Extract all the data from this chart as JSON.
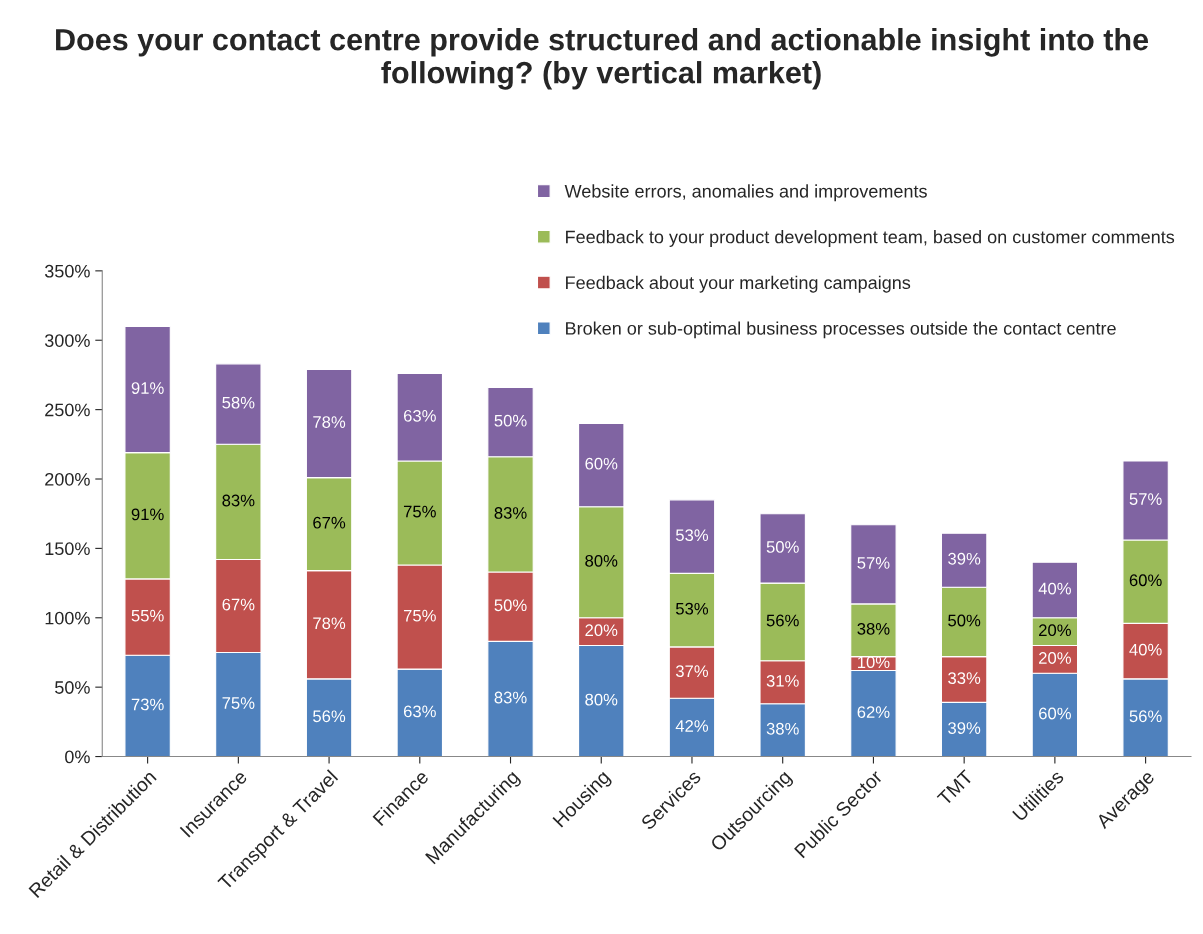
{
  "chart_data": {
    "type": "bar",
    "stacked": true,
    "title": "Does your contact centre provide structured and actionable insight into the following? (by vertical market)",
    "categories": [
      "Retail & Distribution",
      "Insurance",
      "Transport & Travel",
      "Finance",
      "Manufacturing",
      "Housing",
      "Services",
      "Outsourcing",
      "Public Sector",
      "TMT",
      "Utilities",
      "Average"
    ],
    "series": [
      {
        "name": "Broken or sub-optimal business processes outside the contact centre",
        "color": "#4f81bd",
        "values": [
          73,
          75,
          56,
          63,
          83,
          80,
          42,
          38,
          62,
          39,
          60,
          56
        ],
        "value_labels": [
          "73%",
          "75%",
          "56%",
          "63%",
          "83%",
          "80%",
          "42%",
          "38%",
          "62%",
          "39%",
          "60%",
          "56%"
        ]
      },
      {
        "name": "Feedback about your marketing campaigns",
        "color": "#c0504d",
        "values": [
          55,
          67,
          78,
          75,
          50,
          20,
          37,
          31,
          10,
          33,
          20,
          40
        ],
        "value_labels": [
          "55%",
          "67%",
          "78%",
          "75%",
          "50%",
          "20%",
          "37%",
          "31%",
          "10%",
          "33%",
          "20%",
          "40%"
        ]
      },
      {
        "name": "Feedback to your product development team, based on customer comments",
        "color": "#9bbb59",
        "values": [
          91,
          83,
          67,
          75,
          83,
          80,
          53,
          56,
          38,
          50,
          20,
          60
        ],
        "value_labels": [
          "91%",
          "83%",
          "67%",
          "75%",
          "83%",
          "80%",
          "53%",
          "56%",
          "38%",
          "50%",
          "20%",
          "60%"
        ]
      },
      {
        "name": "Website errors, anomalies and improvements",
        "color": "#8064a2",
        "values": [
          91,
          58,
          78,
          63,
          50,
          60,
          53,
          50,
          57,
          39,
          40,
          57
        ],
        "value_labels": [
          "91%",
          "58%",
          "78%",
          "63%",
          "50%",
          "60%",
          "53%",
          "50%",
          "57%",
          "39%",
          "40%",
          "57%"
        ]
      }
    ],
    "ylim": [
      0,
      350
    ],
    "yticks": [
      {
        "value": 0,
        "label": "0%"
      },
      {
        "value": 50,
        "label": "50%"
      },
      {
        "value": 100,
        "label": "100%"
      },
      {
        "value": 150,
        "label": "150%"
      },
      {
        "value": 200,
        "label": "200%"
      },
      {
        "value": 250,
        "label": "250%"
      },
      {
        "value": 300,
        "label": "300%"
      },
      {
        "value": 350,
        "label": "350%"
      }
    ],
    "grid": false,
    "legend": "top right"
  }
}
